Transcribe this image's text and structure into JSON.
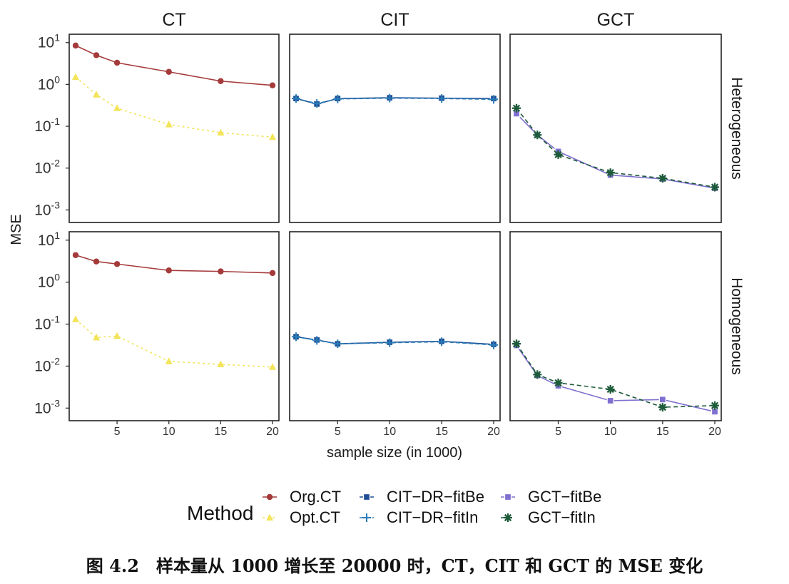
{
  "caption": "图 4.2　样本量从 1000 增长至 20000 时，CT，CIT 和 GCT 的 MSE 变化",
  "colors": {
    "org_ct": "#a53a3a",
    "opt_ct": "#f3e45a",
    "cit_fitbe": "#1f4e96",
    "cit_fitin": "#2a7db8",
    "gct_fitbe": "#7f6fd0",
    "gct_fitin": "#1d5b3a",
    "panel_border": "#222222"
  },
  "chart_data": {
    "type": "line",
    "facet_columns": [
      "CT",
      "CIT",
      "GCT"
    ],
    "facet_rows": [
      "Heterogeneous",
      "Homogeneous"
    ],
    "xlabel": "sample size (in 1000)",
    "ylabel": "MSE",
    "x_ticks": [
      5,
      10,
      15,
      20
    ],
    "x_tick_labels": [
      "5",
      "10",
      "15",
      "20"
    ],
    "xlim": [
      1,
      20
    ],
    "y_scale": "log10",
    "ylim": [
      0.001,
      10
    ],
    "y_tick_labels": {
      "-3": {
        "base": "10",
        "exp": "-3"
      },
      "-2": {
        "base": "10",
        "exp": "-2"
      },
      "-1": {
        "base": "10",
        "exp": "-1"
      },
      "0": {
        "base": "10",
        "exp": "0"
      },
      "1": {
        "base": "10",
        "exp": "1"
      }
    },
    "grid": false,
    "legend": {
      "title": "Method",
      "position": "bottom",
      "entries": [
        {
          "key": "Org.CT",
          "label": "Org.CT"
        },
        {
          "key": "Opt.CT",
          "label": "Opt.CT"
        },
        {
          "key": "CIT-DR-fitBe",
          "label": "CIT−DR−fitBe"
        },
        {
          "key": "CIT-DR-fitIn",
          "label": "CIT−DR−fitIn"
        },
        {
          "key": "GCT-fitBe",
          "label": "GCT−fitBe"
        },
        {
          "key": "GCT-fitIn",
          "label": "GCT−fitIn"
        }
      ]
    },
    "x": [
      1,
      3,
      5,
      10,
      15,
      20
    ],
    "panels": [
      {
        "row": "Heterogeneous",
        "col": "CT",
        "series": [
          {
            "name": "Org.CT",
            "values": [
              8.5,
              5.0,
              3.3,
              2.0,
              1.2,
              0.95
            ]
          },
          {
            "name": "Opt.CT",
            "values": [
              1.5,
              0.57,
              0.27,
              0.11,
              0.07,
              0.055
            ]
          }
        ]
      },
      {
        "row": "Heterogeneous",
        "col": "CIT",
        "series": [
          {
            "name": "CIT-DR-fitBe",
            "values": [
              0.46,
              0.34,
              0.46,
              0.48,
              0.47,
              0.46
            ]
          },
          {
            "name": "CIT-DR-fitIn",
            "values": [
              0.46,
              0.35,
              0.45,
              0.47,
              0.46,
              0.44
            ]
          }
        ]
      },
      {
        "row": "Heterogeneous",
        "col": "GCT",
        "series": [
          {
            "name": "GCT-fitBe",
            "values": [
              0.2,
              0.062,
              0.025,
              0.0068,
              0.0055,
              0.0033
            ]
          },
          {
            "name": "GCT-fitIn",
            "values": [
              0.27,
              0.062,
              0.021,
              0.0078,
              0.0057,
              0.0035
            ]
          }
        ]
      },
      {
        "row": "Homogeneous",
        "col": "CT",
        "series": [
          {
            "name": "Org.CT",
            "values": [
              4.4,
              3.1,
              2.7,
              1.9,
              1.8,
              1.65
            ]
          },
          {
            "name": "Opt.CT",
            "values": [
              0.13,
              0.048,
              0.052,
              0.013,
              0.011,
              0.0095
            ]
          }
        ]
      },
      {
        "row": "Homogeneous",
        "col": "CIT",
        "series": [
          {
            "name": "CIT-DR-fitBe",
            "values": [
              0.05,
              0.042,
              0.034,
              0.037,
              0.039,
              0.033
            ]
          },
          {
            "name": "CIT-DR-fitIn",
            "values": [
              0.05,
              0.041,
              0.034,
              0.036,
              0.038,
              0.032
            ]
          }
        ]
      },
      {
        "row": "Homogeneous",
        "col": "GCT",
        "series": [
          {
            "name": "GCT-fitBe",
            "values": [
              0.031,
              0.006,
              0.0034,
              0.0015,
              0.0016,
              0.00082
            ]
          },
          {
            "name": "GCT-fitIn",
            "values": [
              0.034,
              0.0063,
              0.004,
              0.0028,
              0.00105,
              0.00115
            ]
          }
        ]
      }
    ]
  }
}
